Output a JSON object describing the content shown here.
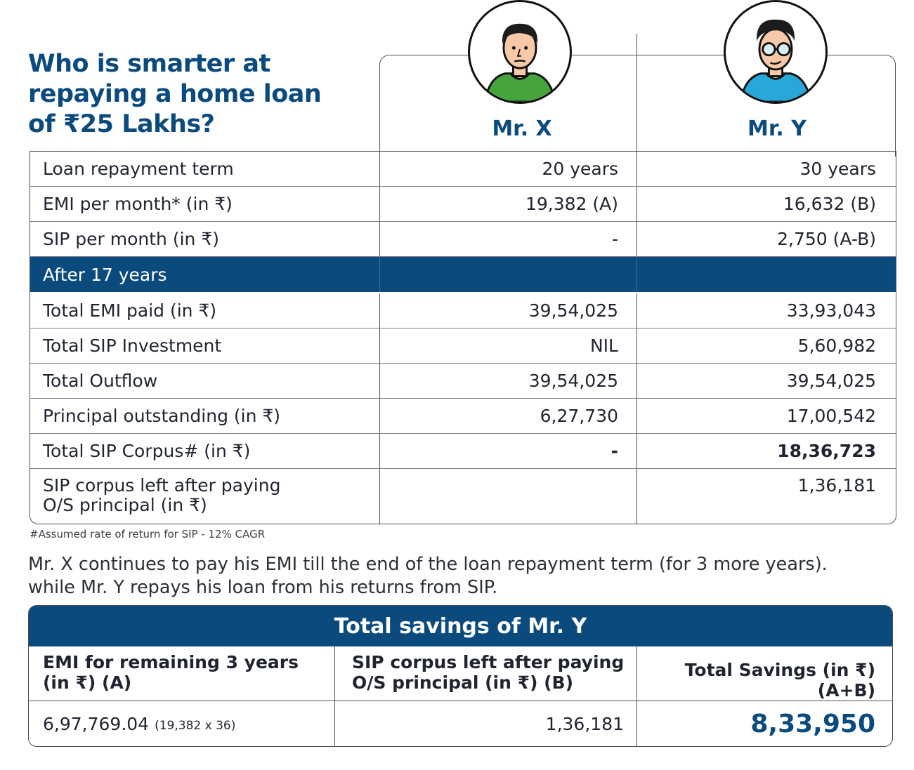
{
  "title": {
    "line1": "Who is smarter at",
    "line2": "repaying a home loan",
    "line3": "of ₹25 Lakhs?"
  },
  "people": {
    "x_name": "Mr. X",
    "y_name": "Mr. Y"
  },
  "rows": [
    {
      "label": "Loan repayment term",
      "x": "20 years",
      "y": "30 years"
    },
    {
      "label": "EMI per month* (in ₹)",
      "x": "19,382 (A)",
      "y": "16,632 (B)"
    },
    {
      "label": "SIP per month (in ₹)",
      "x": "-",
      "y": "2,750 (A-B)"
    },
    {
      "label": "After 17 years",
      "x": "",
      "y": ""
    },
    {
      "label": "Total EMI paid (in ₹)",
      "x": "39,54,025",
      "y": "33,93,043"
    },
    {
      "label": "Total SIP Investment",
      "x": "NIL",
      "y": "5,60,982"
    },
    {
      "label": "Total Outflow",
      "x": "39,54,025",
      "y": "39,54,025"
    },
    {
      "label": "Principal outstanding (in ₹)",
      "x": "6,27,730",
      "y": "17,00,542"
    },
    {
      "label": "Total SIP Corpus# (in ₹)",
      "x": "-",
      "y": "18,36,723"
    },
    {
      "label_line1": "SIP corpus left after paying",
      "label_line2": "O/S principal (in ₹)",
      "x": "",
      "y": "1,36,181"
    }
  ],
  "footnote": "#Assumed rate of return for SIP - 12% CAGR",
  "paragraph": {
    "line1": "Mr. X continues to pay his EMI till the end of the loan repayment term (for 3 more years).",
    "line2": "while Mr. Y repays his loan from his returns from SIP."
  },
  "savings": {
    "title": "Total savings of  Mr. Y",
    "col_a_line1": "EMI for remaining 3 years",
    "col_a_line2": "(in ₹) (A)",
    "col_b_line1": "SIP corpus left after paying",
    "col_b_line2": "O/S principal (in ₹) (B)",
    "col_c_line1": "Total Savings (in ₹)",
    "col_c_line2": "(A+B)",
    "val_a": "6,97,769.04",
    "val_a_note": "(19,382 x 36)",
    "val_b": "1,36,181",
    "val_c": "8,33,950"
  },
  "colors": {
    "brand_blue": "#0b4a7d",
    "shirt_green": "#45a43c",
    "shirt_blue": "#27a8d8"
  },
  "icons": {
    "x_avatar": "man-avatar-icon",
    "y_avatar": "man-with-glasses-avatar-icon"
  }
}
